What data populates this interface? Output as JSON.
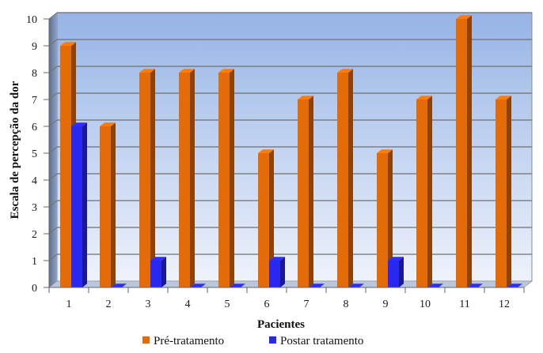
{
  "chart_data": {
    "type": "bar",
    "xlabel": "Pacientes",
    "ylabel": "Escala de percepção da dor",
    "ylim": [
      0,
      10
    ],
    "yticks": [
      0,
      1,
      2,
      3,
      4,
      5,
      6,
      7,
      8,
      9,
      10
    ],
    "categories": [
      "1",
      "2",
      "3",
      "4",
      "5",
      "6",
      "7",
      "8",
      "9",
      "10",
      "11",
      "12"
    ],
    "grid": true,
    "legend_position": "bottom",
    "series": [
      {
        "name": "Pré-tratamento",
        "color": "#E36C09",
        "values": [
          9,
          6,
          8,
          8,
          8,
          5,
          7,
          8,
          5,
          7,
          10,
          7
        ]
      },
      {
        "name": "Postar tratamento",
        "color": "#2828F0",
        "values": [
          6,
          0,
          1,
          0,
          0,
          1,
          0,
          0,
          1,
          0,
          0,
          0
        ]
      }
    ]
  }
}
